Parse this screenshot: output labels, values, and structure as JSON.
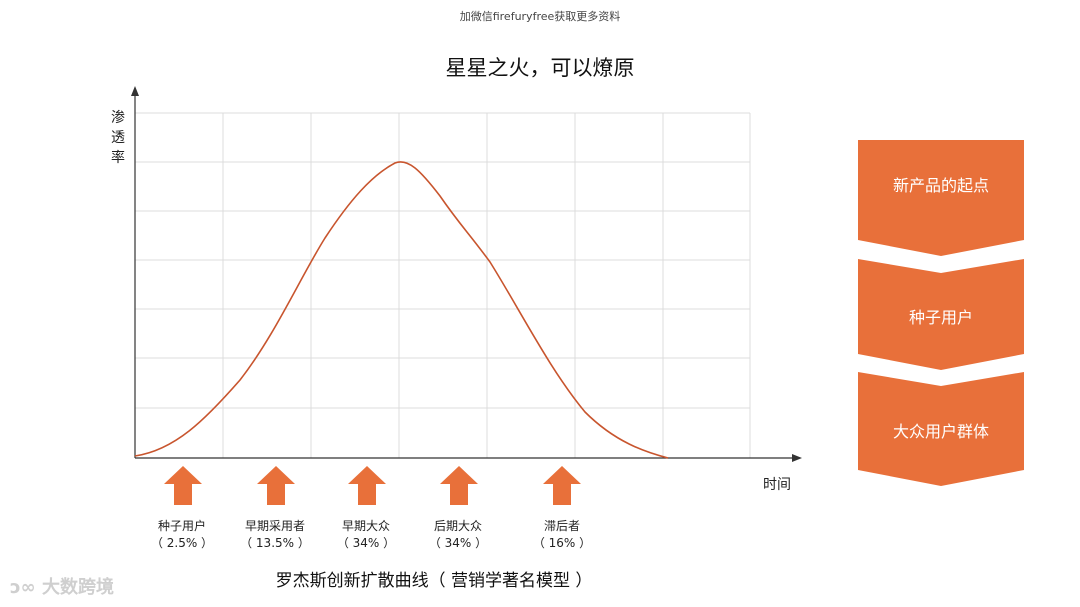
{
  "header": {
    "note": "加微信firefuryfree获取更多资料",
    "title": "星星之火，可以燎原"
  },
  "axes": {
    "y_label": "渗透率",
    "x_label": "时间"
  },
  "segments": [
    {
      "name": "种子用户",
      "percent": "（ 2.5% ）"
    },
    {
      "name": "早期采用者",
      "percent": "（ 13.5% ）"
    },
    {
      "name": "早期大众",
      "percent": "（ 34% ）"
    },
    {
      "name": "后期大众",
      "percent": "（ 34% ）"
    },
    {
      "name": "滞后者",
      "percent": "（ 16% ）"
    }
  ],
  "caption": "罗杰斯创新扩散曲线（ 营销学著名模型 ）",
  "watermark": "大数跨境",
  "stages": [
    {
      "label": "新产品的起点"
    },
    {
      "label": "种子用户"
    },
    {
      "label": "大众用户群体"
    }
  ],
  "colors": {
    "accent": "#E8703A",
    "curve": "#C8552E",
    "grid": "#DCDCDC",
    "axis": "#333333"
  }
}
